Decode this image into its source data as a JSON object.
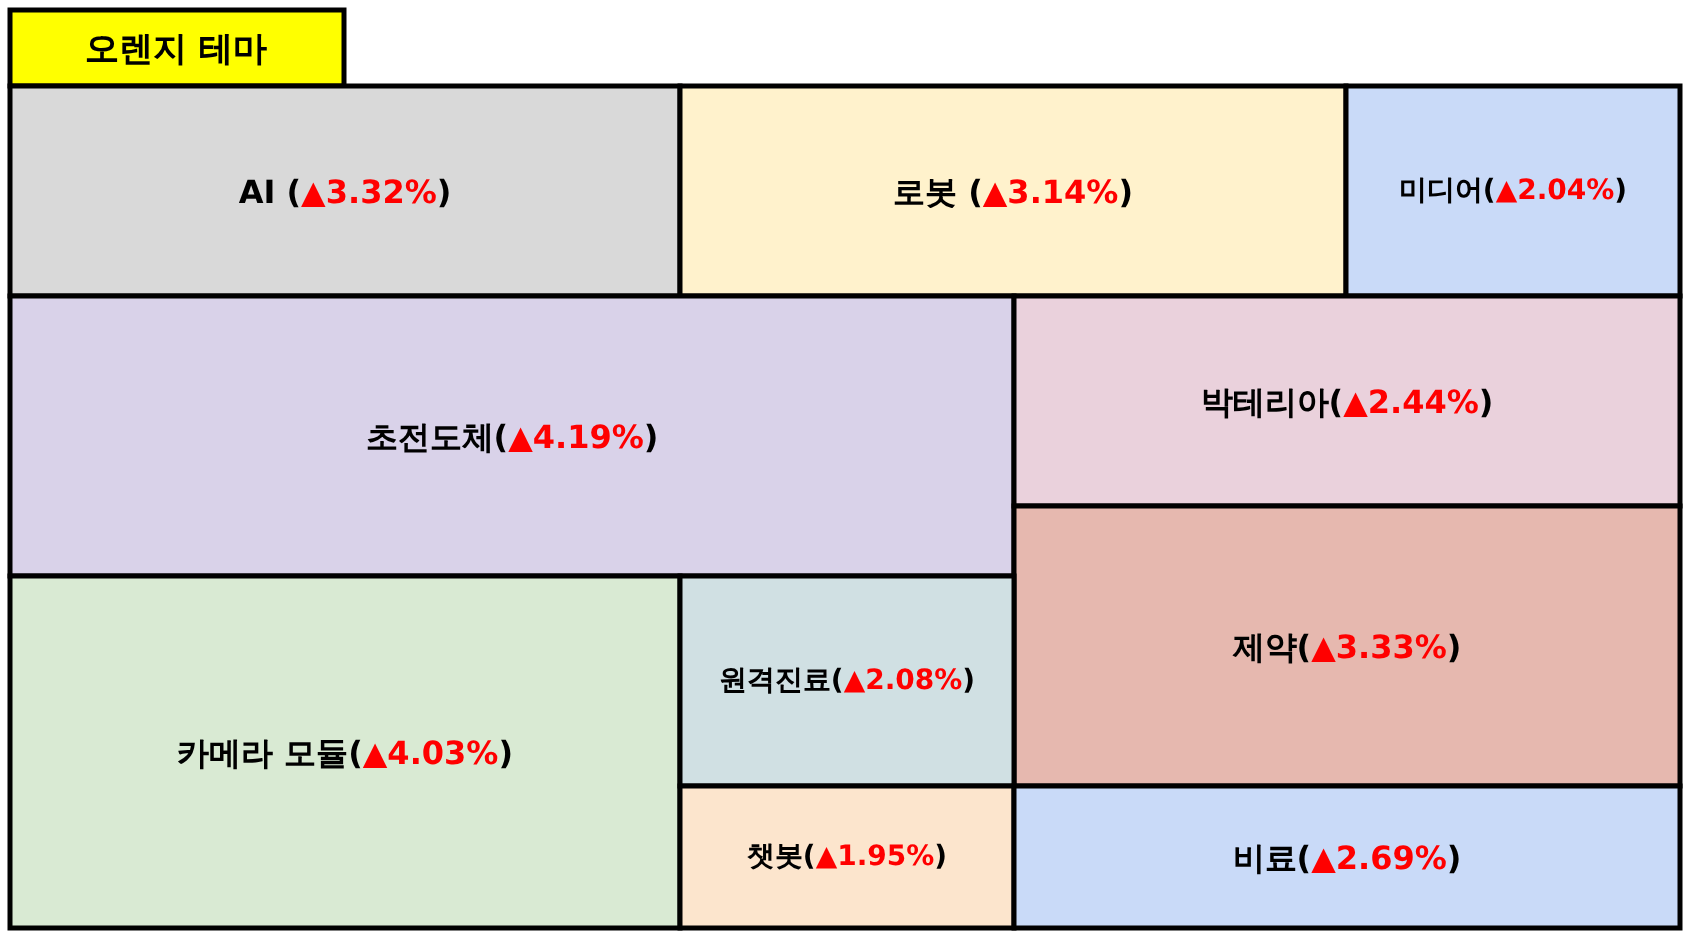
{
  "chart_data": {
    "type": "other",
    "title": "오렌지 테마",
    "categories": [
      "AI ",
      "로봇 ",
      "미디어",
      "초전도체",
      "박테리아",
      "제약",
      "카메라 모듈",
      "원격진료",
      "챗봇",
      "비료"
    ],
    "values": [
      3.32,
      3.14,
      2.04,
      4.19,
      2.44,
      3.33,
      4.03,
      2.08,
      1.95,
      2.69
    ],
    "value_labels": [
      "(▲3.32%)",
      "(▲3.14%)",
      "(▲2.04%)",
      "(▲4.19%)",
      "(▲2.44%)",
      "(▲3.33%)",
      "(▲4.03%)",
      "(▲2.08%)",
      "(▲1.95%)",
      "(▲2.69%)"
    ],
    "colors": [
      "#d9d9d9",
      "#fff2cc",
      "#c9daf8",
      "#d9d2e9",
      "#ead1dc",
      "#e6b8af",
      "#d9ead3",
      "#d0e0e3",
      "#fce5cd",
      "#c9daf8"
    ]
  }
}
